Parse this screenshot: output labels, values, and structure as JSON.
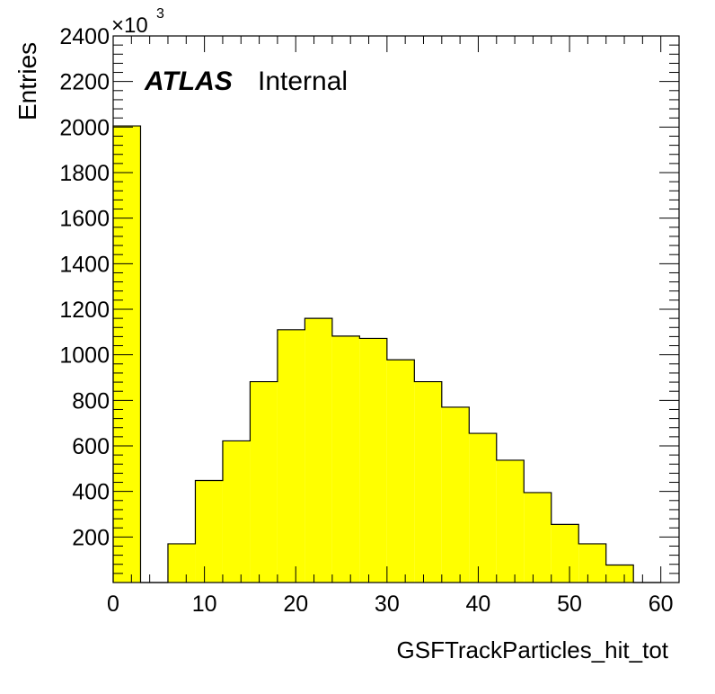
{
  "chart_data": {
    "type": "bar",
    "histogram": true,
    "x_bin_width": 3,
    "bins_x_start": [
      0,
      3,
      6,
      9,
      12,
      15,
      18,
      21,
      24,
      27,
      30,
      33,
      36,
      39,
      42,
      45,
      48,
      51,
      54,
      57
    ],
    "values_thousands": [
      2005,
      0,
      170,
      448,
      622,
      882,
      1110,
      1160,
      1082,
      1072,
      978,
      882,
      770,
      655,
      537,
      395,
      255,
      170,
      77,
      0
    ],
    "xlim": [
      0,
      62
    ],
    "ylim": [
      0,
      2400
    ],
    "xticks": [
      "0",
      "10",
      "20",
      "30",
      "40",
      "50",
      "60"
    ],
    "yticks": [
      "200",
      "400",
      "600",
      "800",
      "1000",
      "1200",
      "1400",
      "1600",
      "1800",
      "2000",
      "2200",
      "2400"
    ],
    "y_scale_label": "×10",
    "y_scale_exponent": "3",
    "xlabel": "GSFTrackParticles_hit_tot",
    "ylabel": "Entries",
    "fill_color": "#ffff00",
    "line_color": "#000000"
  },
  "annotation": {
    "atlas": "ATLAS",
    "status": "Internal"
  }
}
